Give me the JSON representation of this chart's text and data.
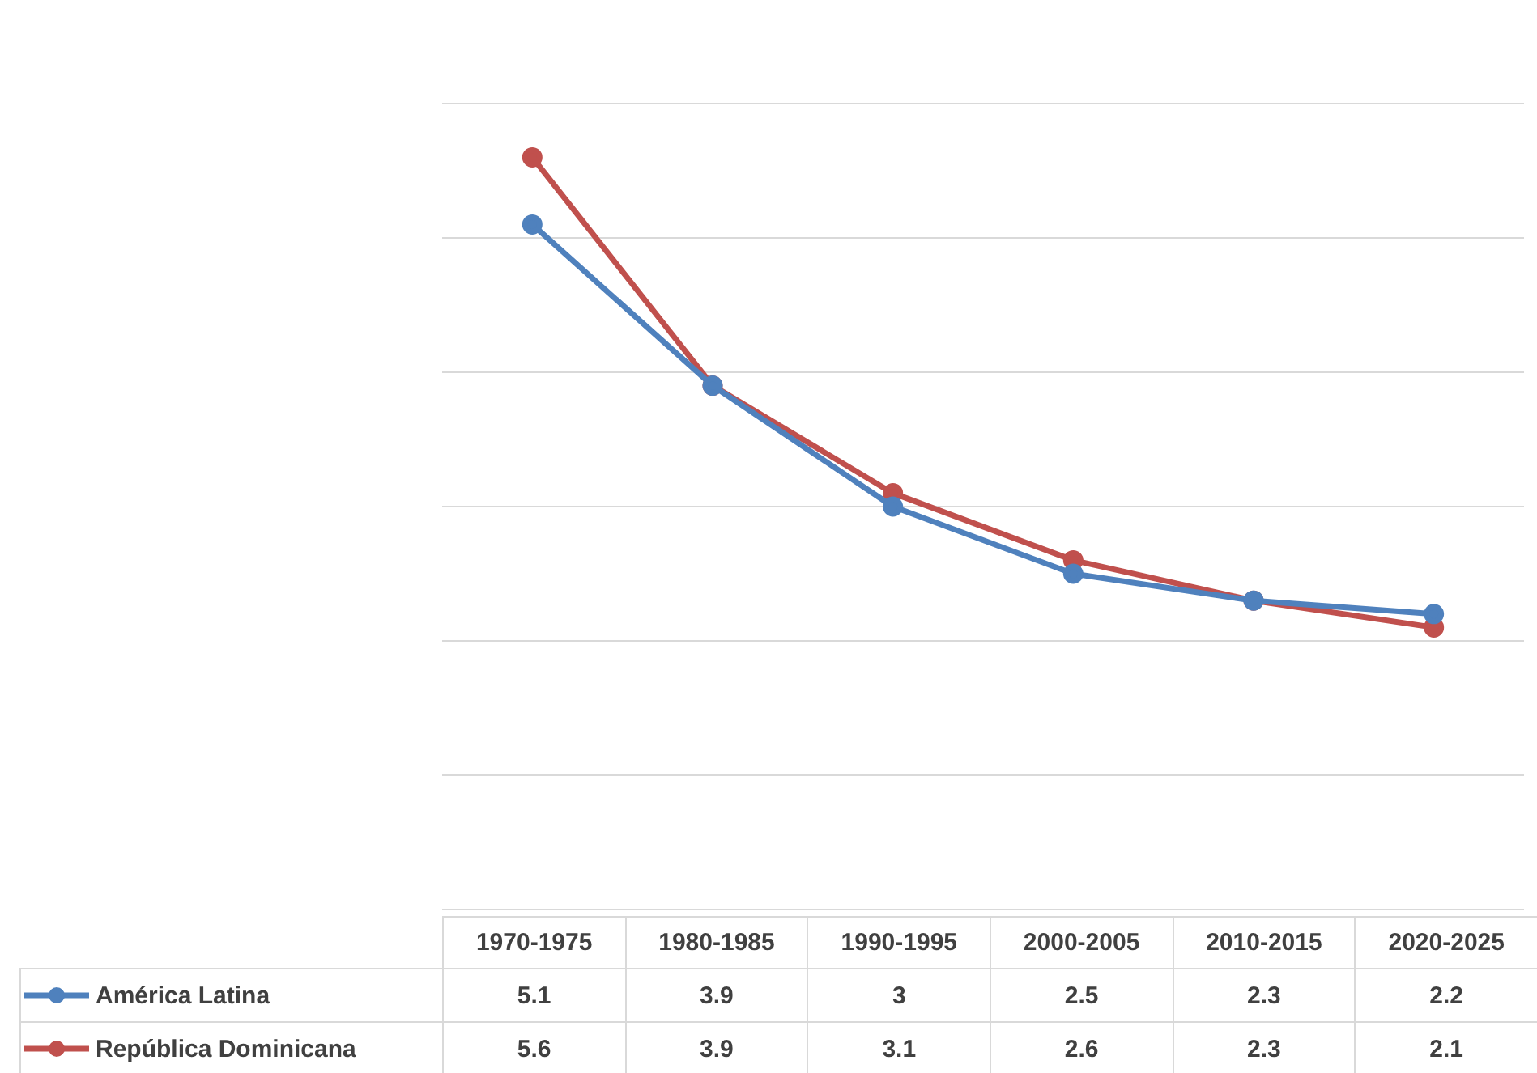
{
  "chart_data": {
    "type": "line",
    "categories": [
      "1970-1975",
      "1980-1985",
      "1990-1995",
      "2000-2005",
      "2010-2015",
      "2020-2025"
    ],
    "series": [
      {
        "name": "América Latina",
        "color": "#4f81bd",
        "values": [
          5.1,
          3.9,
          3,
          2.5,
          2.3,
          2.2
        ]
      },
      {
        "name": "República Dominicana",
        "color": "#c0504d",
        "values": [
          5.6,
          3.9,
          3.1,
          2.6,
          2.3,
          2.1
        ]
      }
    ],
    "ylim": [
      0,
      6
    ],
    "yticks": [
      {
        "value": 0,
        "label": null
      },
      {
        "value": 1,
        "label": null
      },
      {
        "value": 2,
        "label": null
      },
      {
        "value": 3,
        "label": null
      },
      {
        "value": 4,
        "label": null
      },
      {
        "value": 5,
        "label": null
      },
      {
        "value": 6,
        "label": null
      }
    ],
    "tick_labels": "x",
    "grid": "y",
    "legend": "bottom",
    "data_labels": true,
    "marker": "circle",
    "line_style": "solid"
  }
}
